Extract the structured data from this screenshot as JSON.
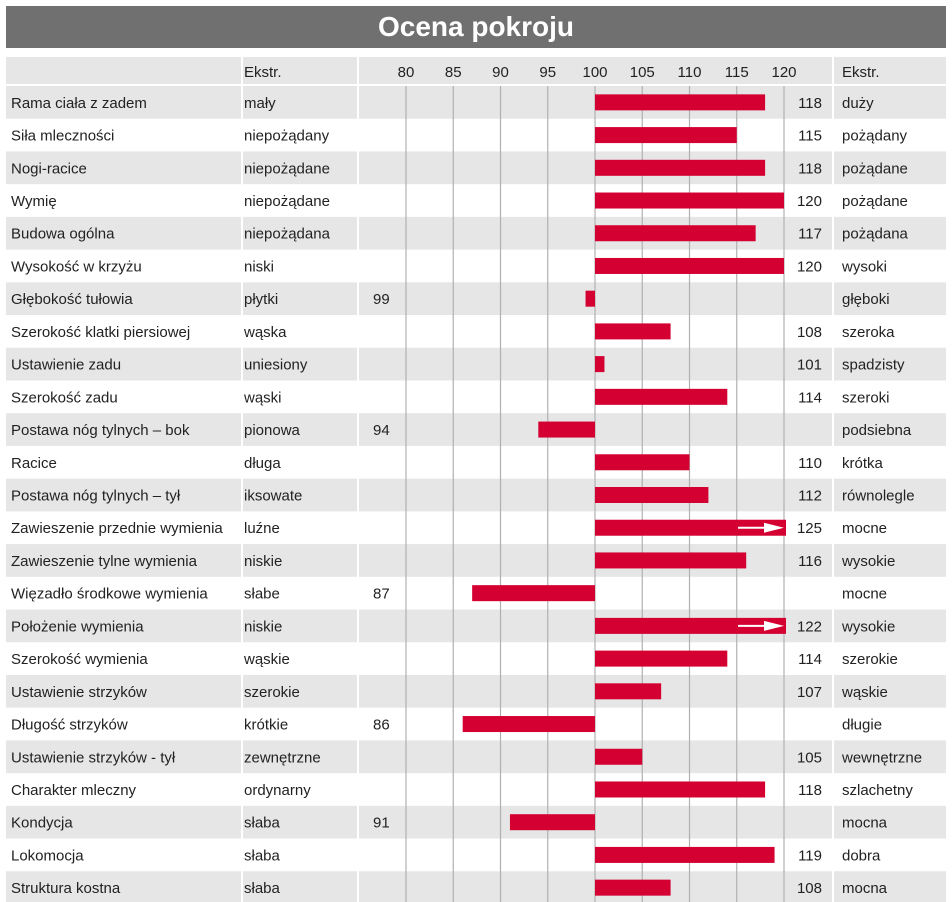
{
  "title": "Ocena pokroju",
  "headers": {
    "left_extreme": "Ekstr.",
    "right_extreme": "Ekstr."
  },
  "colors": {
    "bar": "#d40032",
    "title_bg": "#707070",
    "row_shade": "#e6e6e6",
    "grid": "#b0b0b0"
  },
  "chart_data": {
    "type": "bar",
    "orientation": "horizontal",
    "baseline": 100,
    "xlim": [
      75,
      121
    ],
    "ticks": [
      80,
      85,
      90,
      95,
      100,
      105,
      110,
      115,
      120
    ],
    "rows": [
      {
        "trait": "Rama ciała z zadem",
        "low": "mały",
        "high": "duży",
        "value": 118,
        "overflow": false
      },
      {
        "trait": "Siła mleczności",
        "low": "niepożądany",
        "high": "pożądany",
        "value": 115,
        "overflow": false
      },
      {
        "trait": "Nogi-racice",
        "low": "niepożądane",
        "high": "pożądane",
        "value": 118,
        "overflow": false
      },
      {
        "trait": "Wymię",
        "low": "niepożądane",
        "high": "pożądane",
        "value": 120,
        "overflow": false
      },
      {
        "trait": "Budowa ogólna",
        "low": "niepożądana",
        "high": "pożądana",
        "value": 117,
        "overflow": false
      },
      {
        "trait": "Wysokość w krzyżu",
        "low": "niski",
        "high": "wysoki",
        "value": 120,
        "overflow": false
      },
      {
        "trait": "Głębokość tułowia",
        "low": "płytki",
        "high": "głęboki",
        "value": 99,
        "overflow": false
      },
      {
        "trait": "Szerokość klatki piersiowej",
        "low": "wąska",
        "high": "szeroka",
        "value": 108,
        "overflow": false
      },
      {
        "trait": "Ustawienie zadu",
        "low": "uniesiony",
        "high": "spadzisty",
        "value": 101,
        "overflow": false
      },
      {
        "trait": "Szerokość zadu",
        "low": "wąski",
        "high": "szeroki",
        "value": 114,
        "overflow": false
      },
      {
        "trait": "Postawa nóg tylnych – bok",
        "low": "pionowa",
        "high": "podsiebna",
        "value": 94,
        "overflow": false
      },
      {
        "trait": "Racice",
        "low": "długa",
        "high": "krótka",
        "value": 110,
        "overflow": false
      },
      {
        "trait": "Postawa nóg tylnych – tył",
        "low": "iksowate",
        "high": "równolegle",
        "value": 112,
        "overflow": false
      },
      {
        "trait": "Zawieszenie przednie wymienia",
        "low": "luźne",
        "high": "mocne",
        "value": 125,
        "overflow": true
      },
      {
        "trait": "Zawieszenie tylne wymienia",
        "low": "niskie",
        "high": "wysokie",
        "value": 116,
        "overflow": false
      },
      {
        "trait": "Więzadło środkowe wymienia",
        "low": "słabe",
        "high": "mocne",
        "value": 87,
        "overflow": false
      },
      {
        "trait": "Położenie wymienia",
        "low": "niskie",
        "high": "wysokie",
        "value": 122,
        "overflow": true
      },
      {
        "trait": "Szerokość wymienia",
        "low": "wąskie",
        "high": "szerokie",
        "value": 114,
        "overflow": false
      },
      {
        "trait": "Ustawienie strzyków",
        "low": "szerokie",
        "high": "wąskie",
        "value": 107,
        "overflow": false
      },
      {
        "trait": "Długość strzyków",
        "low": "krótkie",
        "high": "długie",
        "value": 86,
        "overflow": false
      },
      {
        "trait": "Ustawienie strzyków - tył",
        "low": "zewnętrzne",
        "high": "wewnętrzne",
        "value": 105,
        "overflow": false
      },
      {
        "trait": "Charakter mleczny",
        "low": "ordynarny",
        "high": "szlachetny",
        "value": 118,
        "overflow": false
      },
      {
        "trait": "Kondycja",
        "low": "słaba",
        "high": "mocna",
        "value": 91,
        "overflow": false
      },
      {
        "trait": "Lokomocja",
        "low": "słaba",
        "high": "dobra",
        "value": 119,
        "overflow": false
      },
      {
        "trait": "Struktura kostna",
        "low": "słaba",
        "high": "mocna",
        "value": 108,
        "overflow": false
      }
    ]
  }
}
